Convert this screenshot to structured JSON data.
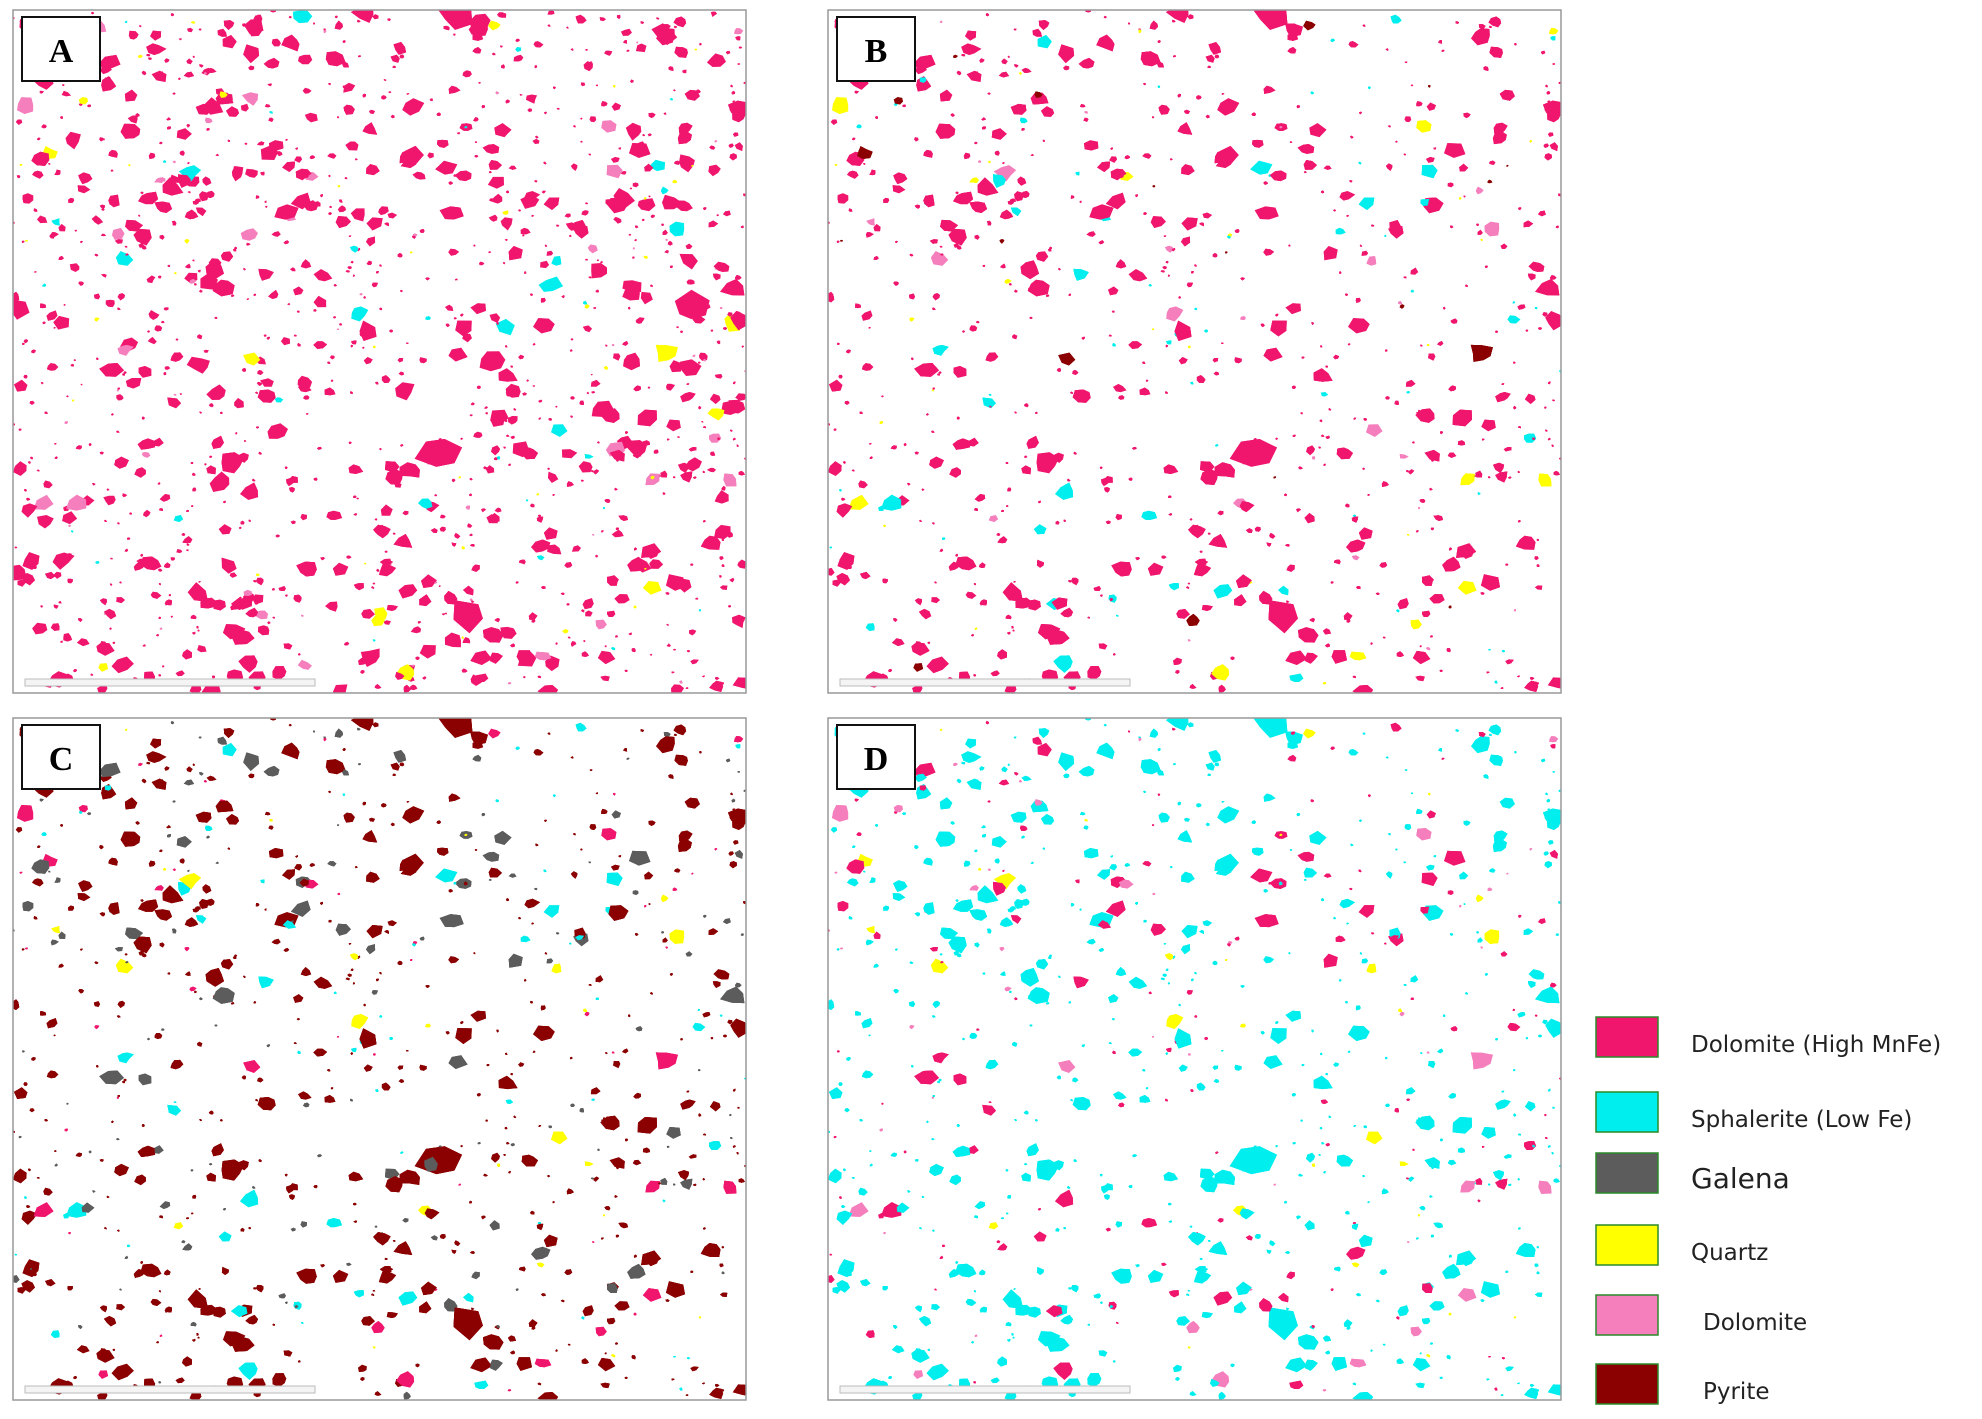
{
  "panels": [
    {
      "label": "A"
    },
    {
      "label": "B"
    },
    {
      "label": "C"
    },
    {
      "label": "D"
    }
  ],
  "legend": [
    {
      "label": "Dolomite (High MnFe)",
      "color": "#f0166e"
    },
    {
      "label": "Sphalerite (Low Fe)",
      "color": "#00eeee"
    },
    {
      "label": "Galena",
      "color": "#5c5c5c"
    },
    {
      "label": "Quartz",
      "color": "#ffff00"
    },
    {
      "label": "Dolomite",
      "color": "#f57fbd"
    },
    {
      "label": "Pyrite",
      "color": "#8b0000"
    }
  ]
}
